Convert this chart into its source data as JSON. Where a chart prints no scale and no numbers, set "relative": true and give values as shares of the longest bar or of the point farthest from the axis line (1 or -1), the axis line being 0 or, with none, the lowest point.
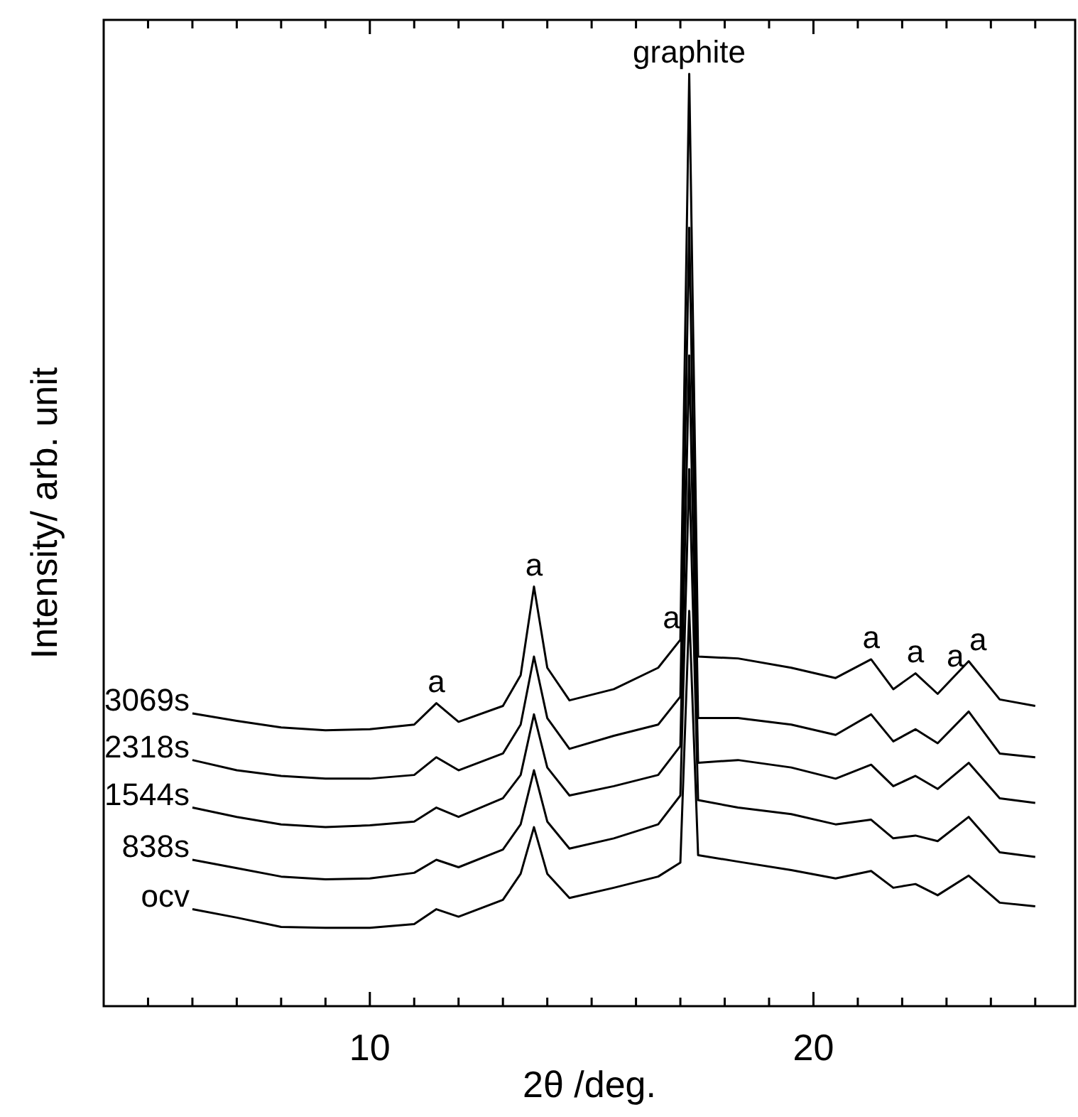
{
  "chart_data": {
    "type": "line",
    "relative": true,
    "xlabel": "2θ  /deg.",
    "ylabel": "Intensity/ arb. unit",
    "line_style": "solid",
    "grid": false,
    "xlim": [
      4,
      25.9
    ],
    "xticks": [
      {
        "value": 5,
        "label": null
      },
      {
        "value": 6,
        "label": null
      },
      {
        "value": 7,
        "label": null
      },
      {
        "value": 8,
        "label": null
      },
      {
        "value": 9,
        "label": null
      },
      10,
      {
        "value": 11,
        "label": null
      },
      {
        "value": 12,
        "label": null
      },
      {
        "value": 13,
        "label": null
      },
      {
        "value": 14,
        "label": null
      },
      {
        "value": 15,
        "label": null
      },
      {
        "value": 16,
        "label": null
      },
      {
        "value": 17,
        "label": null
      },
      {
        "value": 18,
        "label": null
      },
      {
        "value": 19,
        "label": null
      },
      20,
      {
        "value": 21,
        "label": null
      },
      {
        "value": 22,
        "label": null
      },
      {
        "value": 23,
        "label": null
      },
      {
        "value": 24,
        "label": null
      },
      {
        "value": 25,
        "label": null
      }
    ],
    "x": [
      6,
      7,
      8,
      9,
      10,
      11,
      11.5,
      12,
      13,
      13.4,
      13.7,
      14.0,
      14.5,
      15.5,
      16.5,
      17.0,
      17.2,
      17.4,
      18.3,
      19.5,
      20.5,
      21.3,
      21.8,
      22.3,
      22.8,
      23.5,
      24.2,
      25
    ],
    "series": [
      {
        "name": "ocv",
        "color": "#000000",
        "values": [
          0.104,
          0.095,
          0.085,
          0.084,
          0.084,
          0.088,
          0.104,
          0.096,
          0.114,
          0.142,
          0.192,
          0.142,
          0.116,
          0.127,
          0.139,
          0.154,
          0.424,
          0.162,
          0.155,
          0.146,
          0.137,
          0.145,
          0.127,
          0.131,
          0.119,
          0.14,
          0.111,
          0.107
        ]
      },
      {
        "name": "838s",
        "color": "#000000",
        "values": [
          0.157,
          0.148,
          0.139,
          0.136,
          0.137,
          0.143,
          0.157,
          0.149,
          0.168,
          0.195,
          0.253,
          0.198,
          0.169,
          0.18,
          0.195,
          0.226,
          0.576,
          0.221,
          0.213,
          0.206,
          0.195,
          0.2,
          0.18,
          0.183,
          0.177,
          0.203,
          0.165,
          0.16
        ]
      },
      {
        "name": "1544s",
        "color": "#000000",
        "values": [
          0.213,
          0.203,
          0.195,
          0.192,
          0.194,
          0.198,
          0.213,
          0.203,
          0.223,
          0.248,
          0.313,
          0.256,
          0.226,
          0.236,
          0.248,
          0.279,
          0.698,
          0.261,
          0.264,
          0.256,
          0.244,
          0.259,
          0.236,
          0.247,
          0.233,
          0.261,
          0.223,
          0.218
        ]
      },
      {
        "name": "2318s",
        "color": "#000000",
        "values": [
          0.264,
          0.253,
          0.247,
          0.244,
          0.244,
          0.248,
          0.267,
          0.253,
          0.271,
          0.302,
          0.375,
          0.309,
          0.276,
          0.29,
          0.302,
          0.332,
          0.835,
          0.309,
          0.309,
          0.302,
          0.291,
          0.313,
          0.284,
          0.297,
          0.282,
          0.316,
          0.271,
          0.267
        ]
      },
      {
        "name": "3069s",
        "color": "#000000",
        "values": [
          0.314,
          0.306,
          0.299,
          0.296,
          0.297,
          0.302,
          0.325,
          0.305,
          0.322,
          0.355,
          0.45,
          0.363,
          0.328,
          0.34,
          0.363,
          0.393,
          1,
          0.375,
          0.373,
          0.363,
          0.352,
          0.372,
          0.34,
          0.357,
          0.335,
          0.37,
          0.329,
          0.322
        ]
      }
    ],
    "annotations": [
      {
        "text": "graphite",
        "x": 17.2,
        "y": 1
      },
      {
        "text": "a",
        "x": 11.5,
        "y": 0.325
      },
      {
        "text": "a",
        "x": 13.7,
        "y": 0.45
      },
      {
        "text": "a",
        "x": 16.8,
        "y": 0.393
      },
      {
        "text": "a",
        "x": 21.3,
        "y": 0.372
      },
      {
        "text": "a",
        "x": 22.3,
        "y": 0.357
      },
      {
        "text": "a",
        "x": 23.2,
        "y": 0.352
      },
      {
        "text": "a",
        "x": 23.5,
        "y": 0.37
      }
    ]
  }
}
